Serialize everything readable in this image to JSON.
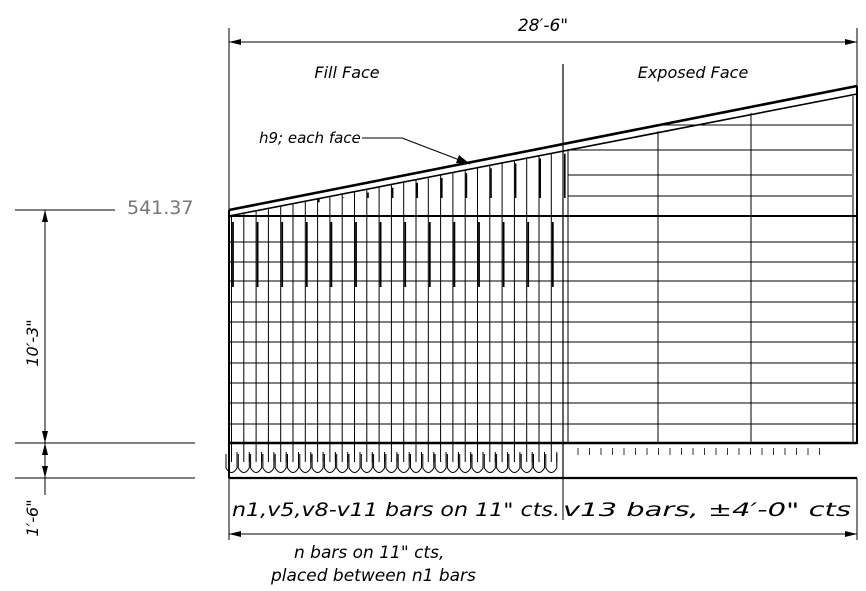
{
  "drawing": {
    "dim_overall_width": "28′-6\"",
    "label_fill_face": "Fill Face",
    "label_exposed_face": "Exposed Face",
    "note_h9": "h9; each face",
    "elevation": "541.37",
    "dim_wall_height": "10′-3\"",
    "dim_footing": "1′-6\"",
    "note_left_bars": "n1,v5,v8-v11 bars on 11\" cts.",
    "note_right_bars": "v13 bars, ±4′-0\" cts",
    "note_n_bars_line1": "n bars on 11\" cts,",
    "note_n_bars_line2": "placed between n1 bars"
  }
}
